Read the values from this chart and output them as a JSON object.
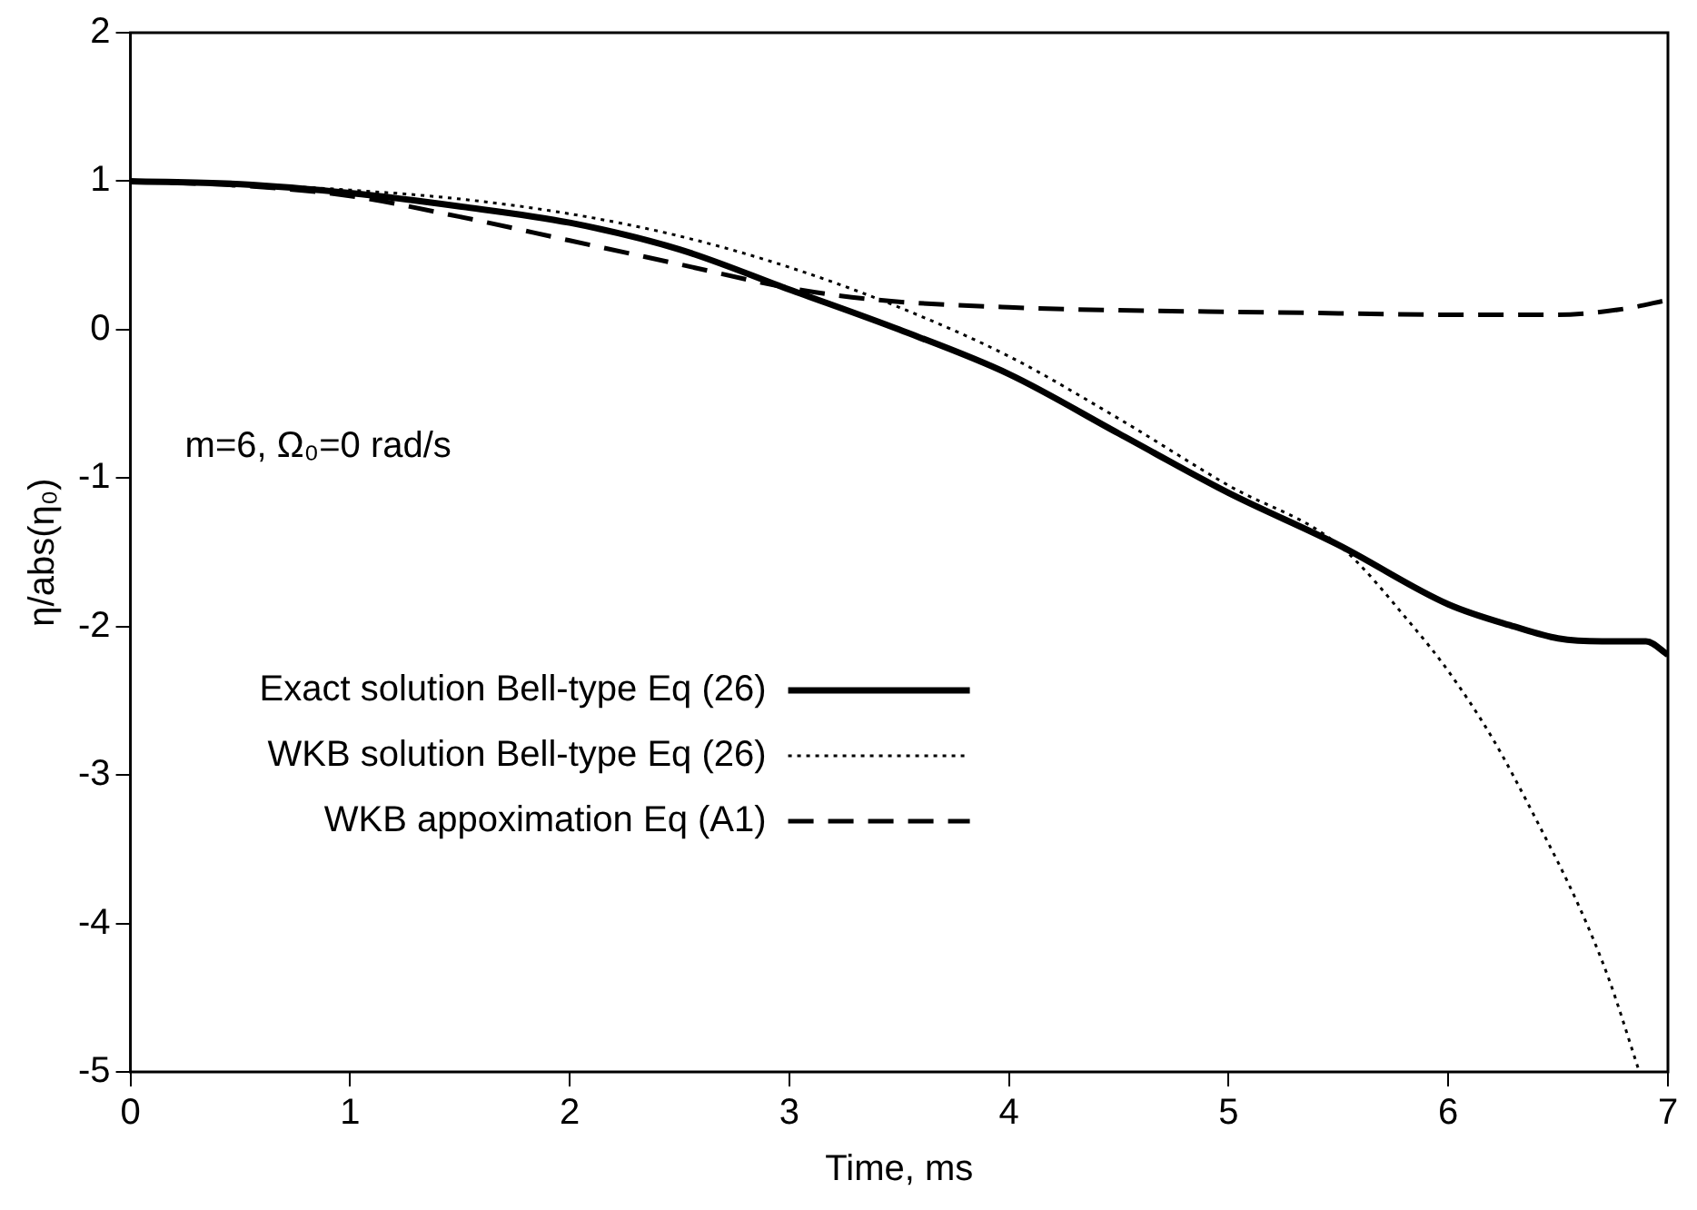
{
  "chart_data": {
    "type": "line",
    "xlabel": "Time, ms",
    "ylabel": "η/abs(η₀)",
    "annotations": [
      "m=6, Ω₀=0 rad/s"
    ],
    "xlim": [
      0,
      7
    ],
    "ylim": [
      -5,
      2
    ],
    "xticks": [
      0,
      1,
      2,
      3,
      4,
      5,
      6,
      7
    ],
    "yticks": [
      -5,
      -4,
      -3,
      -2,
      -1,
      0,
      1,
      2
    ],
    "grid": false,
    "legend": "left",
    "marker": "none",
    "series": [
      {
        "name": "Exact solution Bell-type Eq (26)",
        "color": "#000000",
        "line_style": "solid",
        "x": [
          0,
          0.5,
          1,
          1.5,
          2,
          2.5,
          3,
          3.5,
          4,
          4.5,
          5,
          5.5,
          6,
          6.3,
          6.5,
          6.7,
          6.9,
          7
        ],
        "values": [
          1,
          0.98,
          0.92,
          0.83,
          0.72,
          0.54,
          0.27,
          0,
          -0.3,
          -0.7,
          -1.1,
          -1.45,
          -1.85,
          -2.0,
          -2.08,
          -2.1,
          -2.1,
          -2.19
        ]
      },
      {
        "name": "WKB solution Bell-type Eq (26)",
        "color": "#000000",
        "line_style": "dotted",
        "x": [
          0,
          0.5,
          1,
          1.5,
          2,
          2.5,
          3,
          3.5,
          4,
          4.5,
          5,
          5.5,
          5.84,
          6,
          6.2,
          6.4,
          6.6,
          6.73,
          6.87
        ],
        "values": [
          1,
          0.98,
          0.94,
          0.88,
          0.78,
          0.63,
          0.42,
          0.15,
          -0.18,
          -0.6,
          -1.05,
          -1.45,
          -2.0,
          -2.3,
          -2.75,
          -3.3,
          -3.9,
          -4.37,
          -5
        ]
      },
      {
        "name": "WKB appoximation Eq (A1)",
        "color": "#000000",
        "line_style": "dashed",
        "x": [
          0,
          0.5,
          1,
          1.5,
          2,
          2.5,
          3,
          3.4,
          4,
          4.5,
          5,
          5.5,
          6,
          6.5,
          6.8,
          7
        ],
        "values": [
          1,
          0.97,
          0.9,
          0.76,
          0.6,
          0.44,
          0.28,
          0.2,
          0.15,
          0.13,
          0.12,
          0.11,
          0.1,
          0.1,
          0.14,
          0.2
        ]
      }
    ]
  }
}
